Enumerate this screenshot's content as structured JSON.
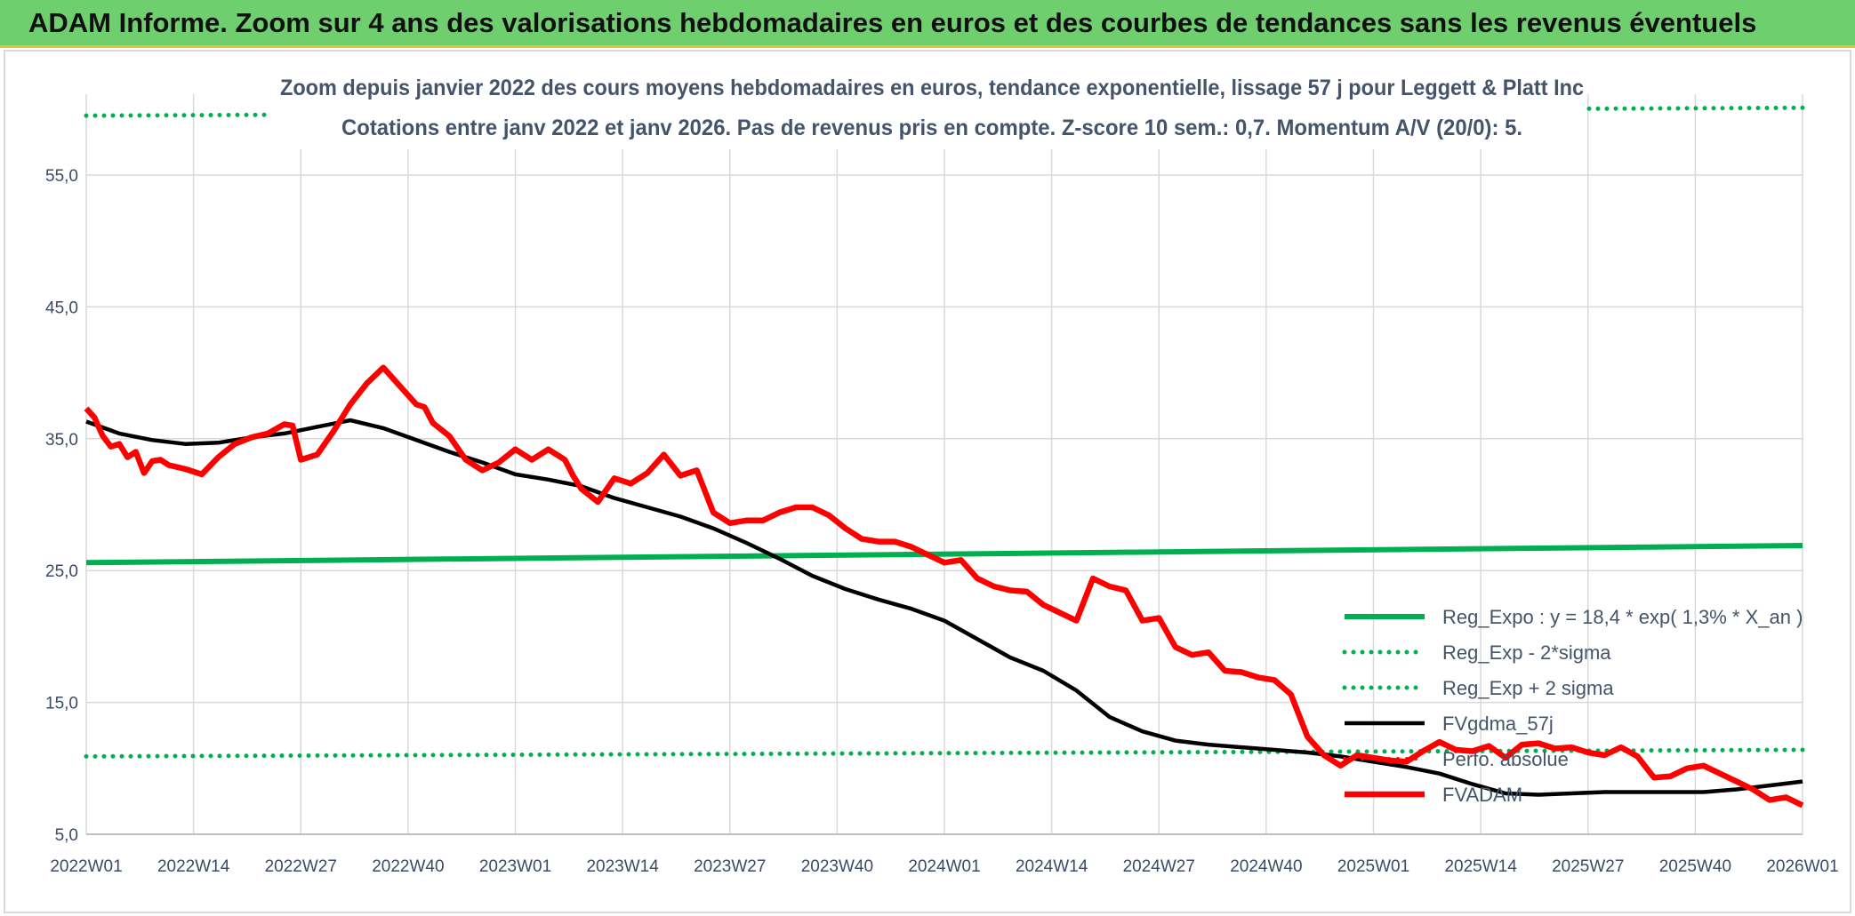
{
  "banner": {
    "title": "ADAM Informe. Zoom sur 4 ans des valorisations hebdomadaires en euros et des courbes de tendances sans les revenus éventuels"
  },
  "colors": {
    "banner": "#6fcf6f",
    "green": "#00b050",
    "red": "#ff0000",
    "black": "#000000",
    "grid": "#d9d9d9"
  },
  "chart_data": {
    "type": "line",
    "title": "Zoom depuis janvier 2022 des cours moyens hebdomadaires en euros, tendance exponentielle, lissage 57 j pour Leggett & Platt Inc",
    "subtitle": "Cotations entre janv 2022 et janv 2026. Pas de revenus pris en compte. Z-score 10 sem.: 0,7. Momentum A/V (20/0): 5.",
    "xlabel": "",
    "ylabel": "",
    "ylim": [
      5,
      55
    ],
    "yticks": [
      "5,0",
      "15,0",
      "25,0",
      "35,0",
      "45,0",
      "55,0"
    ],
    "xticks": [
      "2022W01",
      "2022W14",
      "2022W27",
      "2022W40",
      "2023W01",
      "2023W14",
      "2023W27",
      "2023W40",
      "2024W01",
      "2024W14",
      "2024W27",
      "2024W40",
      "2025W01",
      "2025W14",
      "2025W27",
      "2025W40",
      "2026W01"
    ],
    "grid": true,
    "legend_position": "right",
    "series": [
      {
        "name": "Reg_Expo : y = 18,4 * exp( 1,3% *  X_an )",
        "style": "solid-green",
        "x": [
          0,
          208
        ],
        "values": [
          25.6,
          26.9
        ]
      },
      {
        "name": "Reg_Exp - 2*sigma",
        "style": "dotted-green",
        "x": [
          0,
          208
        ],
        "values": [
          10.9,
          11.4
        ]
      },
      {
        "name": "Reg_Exp + 2 sigma",
        "style": "dotted-green",
        "x": [
          0,
          208
        ],
        "values": [
          59.5,
          60.1
        ]
      },
      {
        "name": "FVgdma_57j",
        "style": "solid-black",
        "x": [
          0,
          4,
          8,
          12,
          16,
          20,
          24,
          28,
          32,
          36,
          40,
          44,
          48,
          52,
          56,
          60,
          64,
          68,
          72,
          76,
          80,
          84,
          88,
          92,
          96,
          100,
          104,
          108,
          112,
          116,
          120,
          124,
          128,
          132,
          136,
          140,
          144,
          148,
          152,
          156,
          160,
          164,
          168,
          172,
          176,
          180,
          184,
          188,
          192,
          196,
          200,
          204,
          208
        ],
        "values": [
          36.3,
          35.4,
          34.9,
          34.6,
          34.7,
          35.1,
          35.4,
          35.9,
          36.4,
          35.8,
          34.9,
          34.0,
          33.2,
          32.3,
          31.9,
          31.4,
          30.5,
          29.8,
          29.1,
          28.2,
          27.1,
          25.9,
          24.6,
          23.6,
          22.8,
          22.1,
          21.2,
          19.8,
          18.4,
          17.4,
          15.9,
          13.9,
          12.8,
          12.1,
          11.8,
          11.6,
          11.4,
          11.2,
          10.9,
          10.5,
          10.1,
          9.6,
          8.8,
          8.1,
          8.0,
          8.1,
          8.2,
          8.2,
          8.2,
          8.2,
          8.4,
          8.7,
          9.0
        ]
      },
      {
        "name": "Perfo. absolue",
        "style": "dotted-red",
        "x": [],
        "values": []
      },
      {
        "name": "FVADAM",
        "style": "solid-red",
        "x": [
          0,
          1,
          2,
          3,
          4,
          5,
          6,
          7,
          8,
          9,
          10,
          12,
          14,
          16,
          18,
          20,
          22,
          24,
          25,
          26,
          28,
          30,
          32,
          34,
          36,
          38,
          40,
          41,
          42,
          44,
          46,
          48,
          50,
          52,
          54,
          56,
          58,
          59,
          60,
          62,
          64,
          66,
          68,
          70,
          72,
          74,
          76,
          78,
          80,
          82,
          84,
          86,
          88,
          90,
          92,
          94,
          96,
          98,
          100,
          102,
          104,
          106,
          108,
          110,
          112,
          114,
          116,
          118,
          120,
          122,
          124,
          126,
          128,
          130,
          132,
          134,
          136,
          138,
          140,
          142,
          144,
          146,
          148,
          150,
          152,
          154,
          156,
          158,
          160,
          162,
          164,
          166,
          168,
          170,
          172,
          174,
          176,
          178,
          180,
          182,
          184,
          186,
          188,
          190,
          192,
          194,
          196,
          198,
          200,
          202,
          204,
          206,
          208
        ],
        "values": [
          37.3,
          36.6,
          35.2,
          34.4,
          34.6,
          33.6,
          34.0,
          32.4,
          33.3,
          33.4,
          33.0,
          32.7,
          32.3,
          33.6,
          34.6,
          35.1,
          35.4,
          36.1,
          36.0,
          33.4,
          33.8,
          35.6,
          37.6,
          39.2,
          40.4,
          39.0,
          37.6,
          37.4,
          36.2,
          35.2,
          33.4,
          32.6,
          33.2,
          34.2,
          33.4,
          34.2,
          33.4,
          32.2,
          31.2,
          30.2,
          32.0,
          31.6,
          32.4,
          33.8,
          32.2,
          32.6,
          29.4,
          28.6,
          28.8,
          28.8,
          29.4,
          29.8,
          29.8,
          29.2,
          28.2,
          27.4,
          27.2,
          27.2,
          26.8,
          26.2,
          25.6,
          25.8,
          24.4,
          23.8,
          23.5,
          23.4,
          22.4,
          21.8,
          21.2,
          24.4,
          23.8,
          23.5,
          21.2,
          21.4,
          19.2,
          18.6,
          18.8,
          17.4,
          17.3,
          16.9,
          16.7,
          15.6,
          12.4,
          11.0,
          10.2,
          11.0,
          10.8,
          10.6,
          10.5,
          11.3,
          12.0,
          11.4,
          11.3,
          11.7,
          10.8,
          11.8,
          11.9,
          11.5,
          11.6,
          11.2,
          11.0,
          11.6,
          10.9,
          9.3,
          9.4,
          10.0,
          10.2,
          9.6,
          9.0,
          8.4,
          7.6,
          7.8,
          7.2
        ]
      }
    ]
  }
}
